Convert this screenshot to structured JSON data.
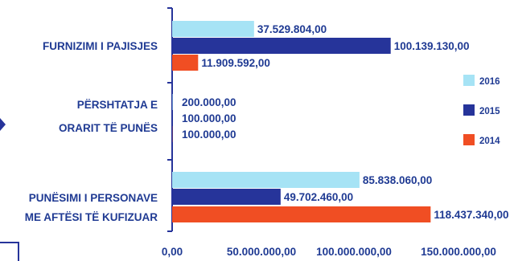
{
  "chart_data": {
    "type": "bar",
    "orientation": "horizontal",
    "categories": [
      {
        "lines": [
          "FURNIZIMI I PAJISJES"
        ]
      },
      {
        "lines": [
          "PËRSHTATJA E",
          "ORARIT TË PUNËS"
        ]
      },
      {
        "lines": [
          "PUNËSIMI I PERSONAVE",
          "ME AFTËSI TË KUFIZUAR"
        ]
      }
    ],
    "series": [
      {
        "name": "2016",
        "color": "#a6e3f5",
        "values": [
          37529804,
          200000,
          85838060
        ],
        "labels": [
          "37.529.804,00",
          "200.000,00",
          "85.838.060,00"
        ]
      },
      {
        "name": "2015",
        "color": "#26349a",
        "values": [
          100139130,
          100000,
          49702460
        ],
        "labels": [
          "100.139.130,00",
          "100.000,00",
          "49.702.460,00"
        ]
      },
      {
        "name": "2014",
        "color": "#f04e23",
        "values": [
          11909592,
          100000,
          118437340
        ],
        "labels": [
          "11.909.592,00",
          "100.000,00",
          "118.437.340,00"
        ]
      }
    ],
    "xlim": [
      0,
      150000000
    ],
    "xticks": [
      0,
      50000000,
      100000000,
      150000000
    ],
    "xtick_labels": [
      "0,00",
      "50.000.000,00",
      "100.000.000,00",
      "150.000.000,00"
    ],
    "legend_position": "right"
  }
}
